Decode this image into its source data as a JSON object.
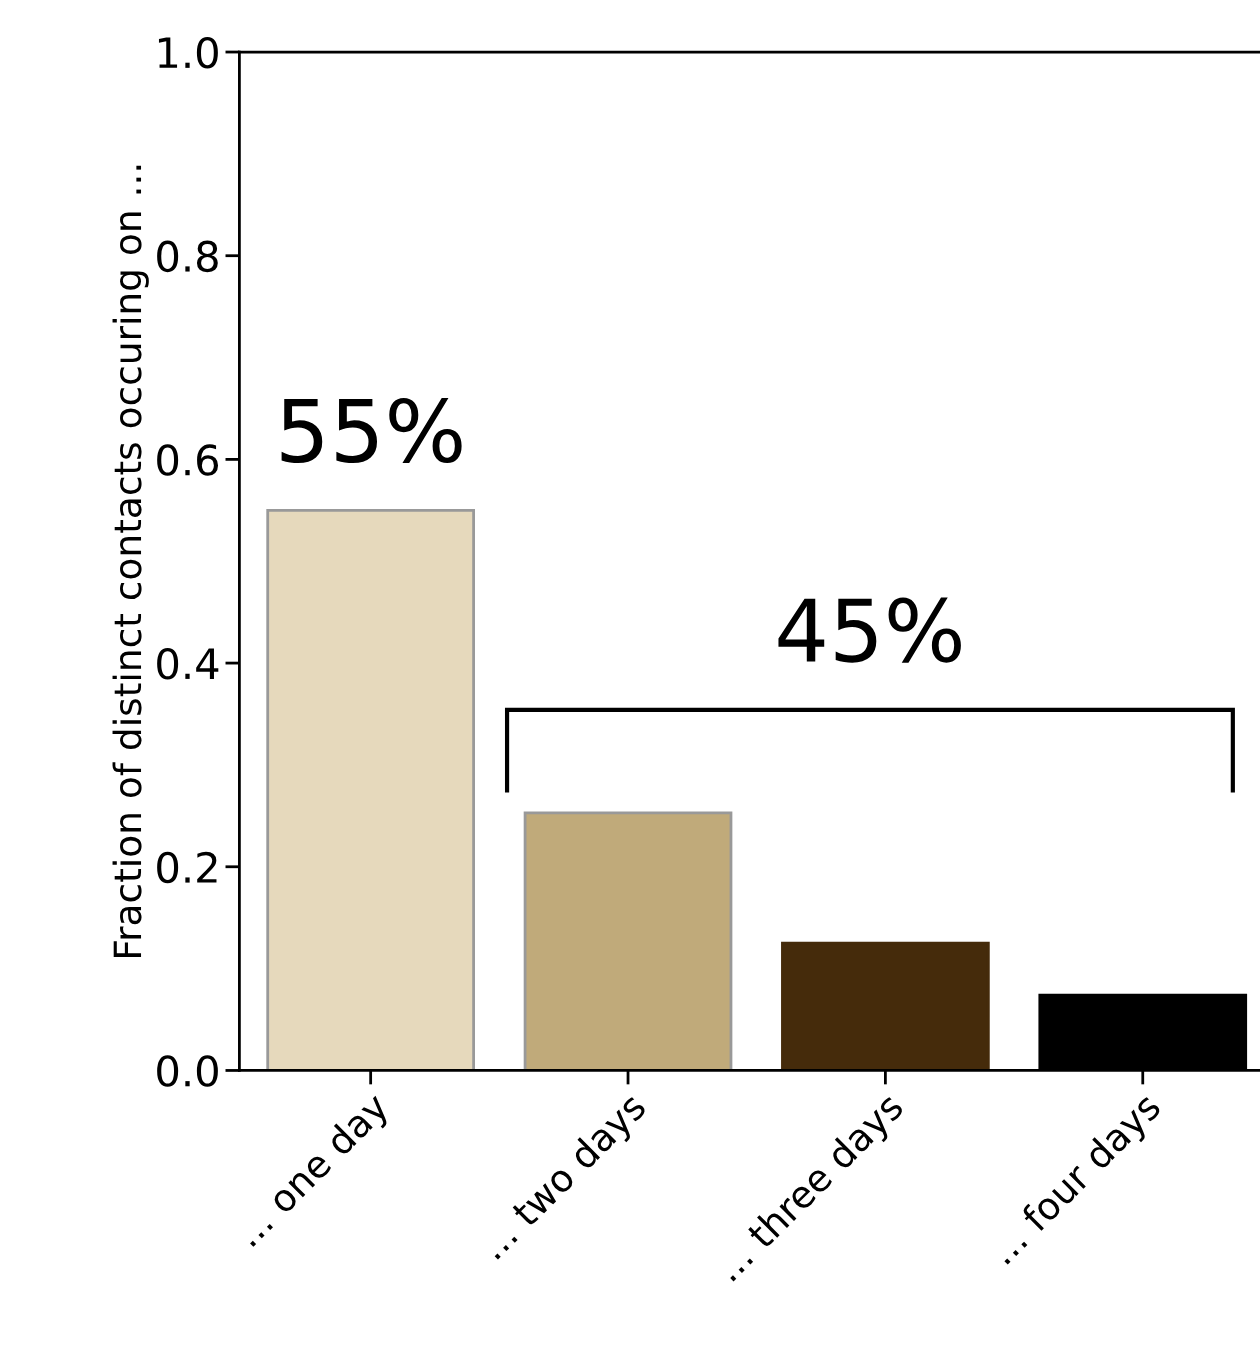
{
  "chart_data": {
    "type": "bar",
    "categories": [
      "... one day",
      "... two days",
      "... three days",
      "... four days"
    ],
    "values": [
      0.55,
      0.253,
      0.125,
      0.074
    ],
    "colors": [
      "#e6d9bc",
      "#c0aa7a",
      "#452b0b",
      "#000000"
    ],
    "ylabel": "Fraction of distinct contacts occuring on ...",
    "ylim": [
      0,
      1.0
    ],
    "yticks": [
      {
        "value": 0,
        "label": "0.0"
      },
      0.2,
      0.4,
      0.6,
      0.8,
      {
        "value": 1,
        "label": "1.0"
      }
    ],
    "annotations": [
      "55%",
      "45%"
    ],
    "grid": false,
    "legend": false
  }
}
